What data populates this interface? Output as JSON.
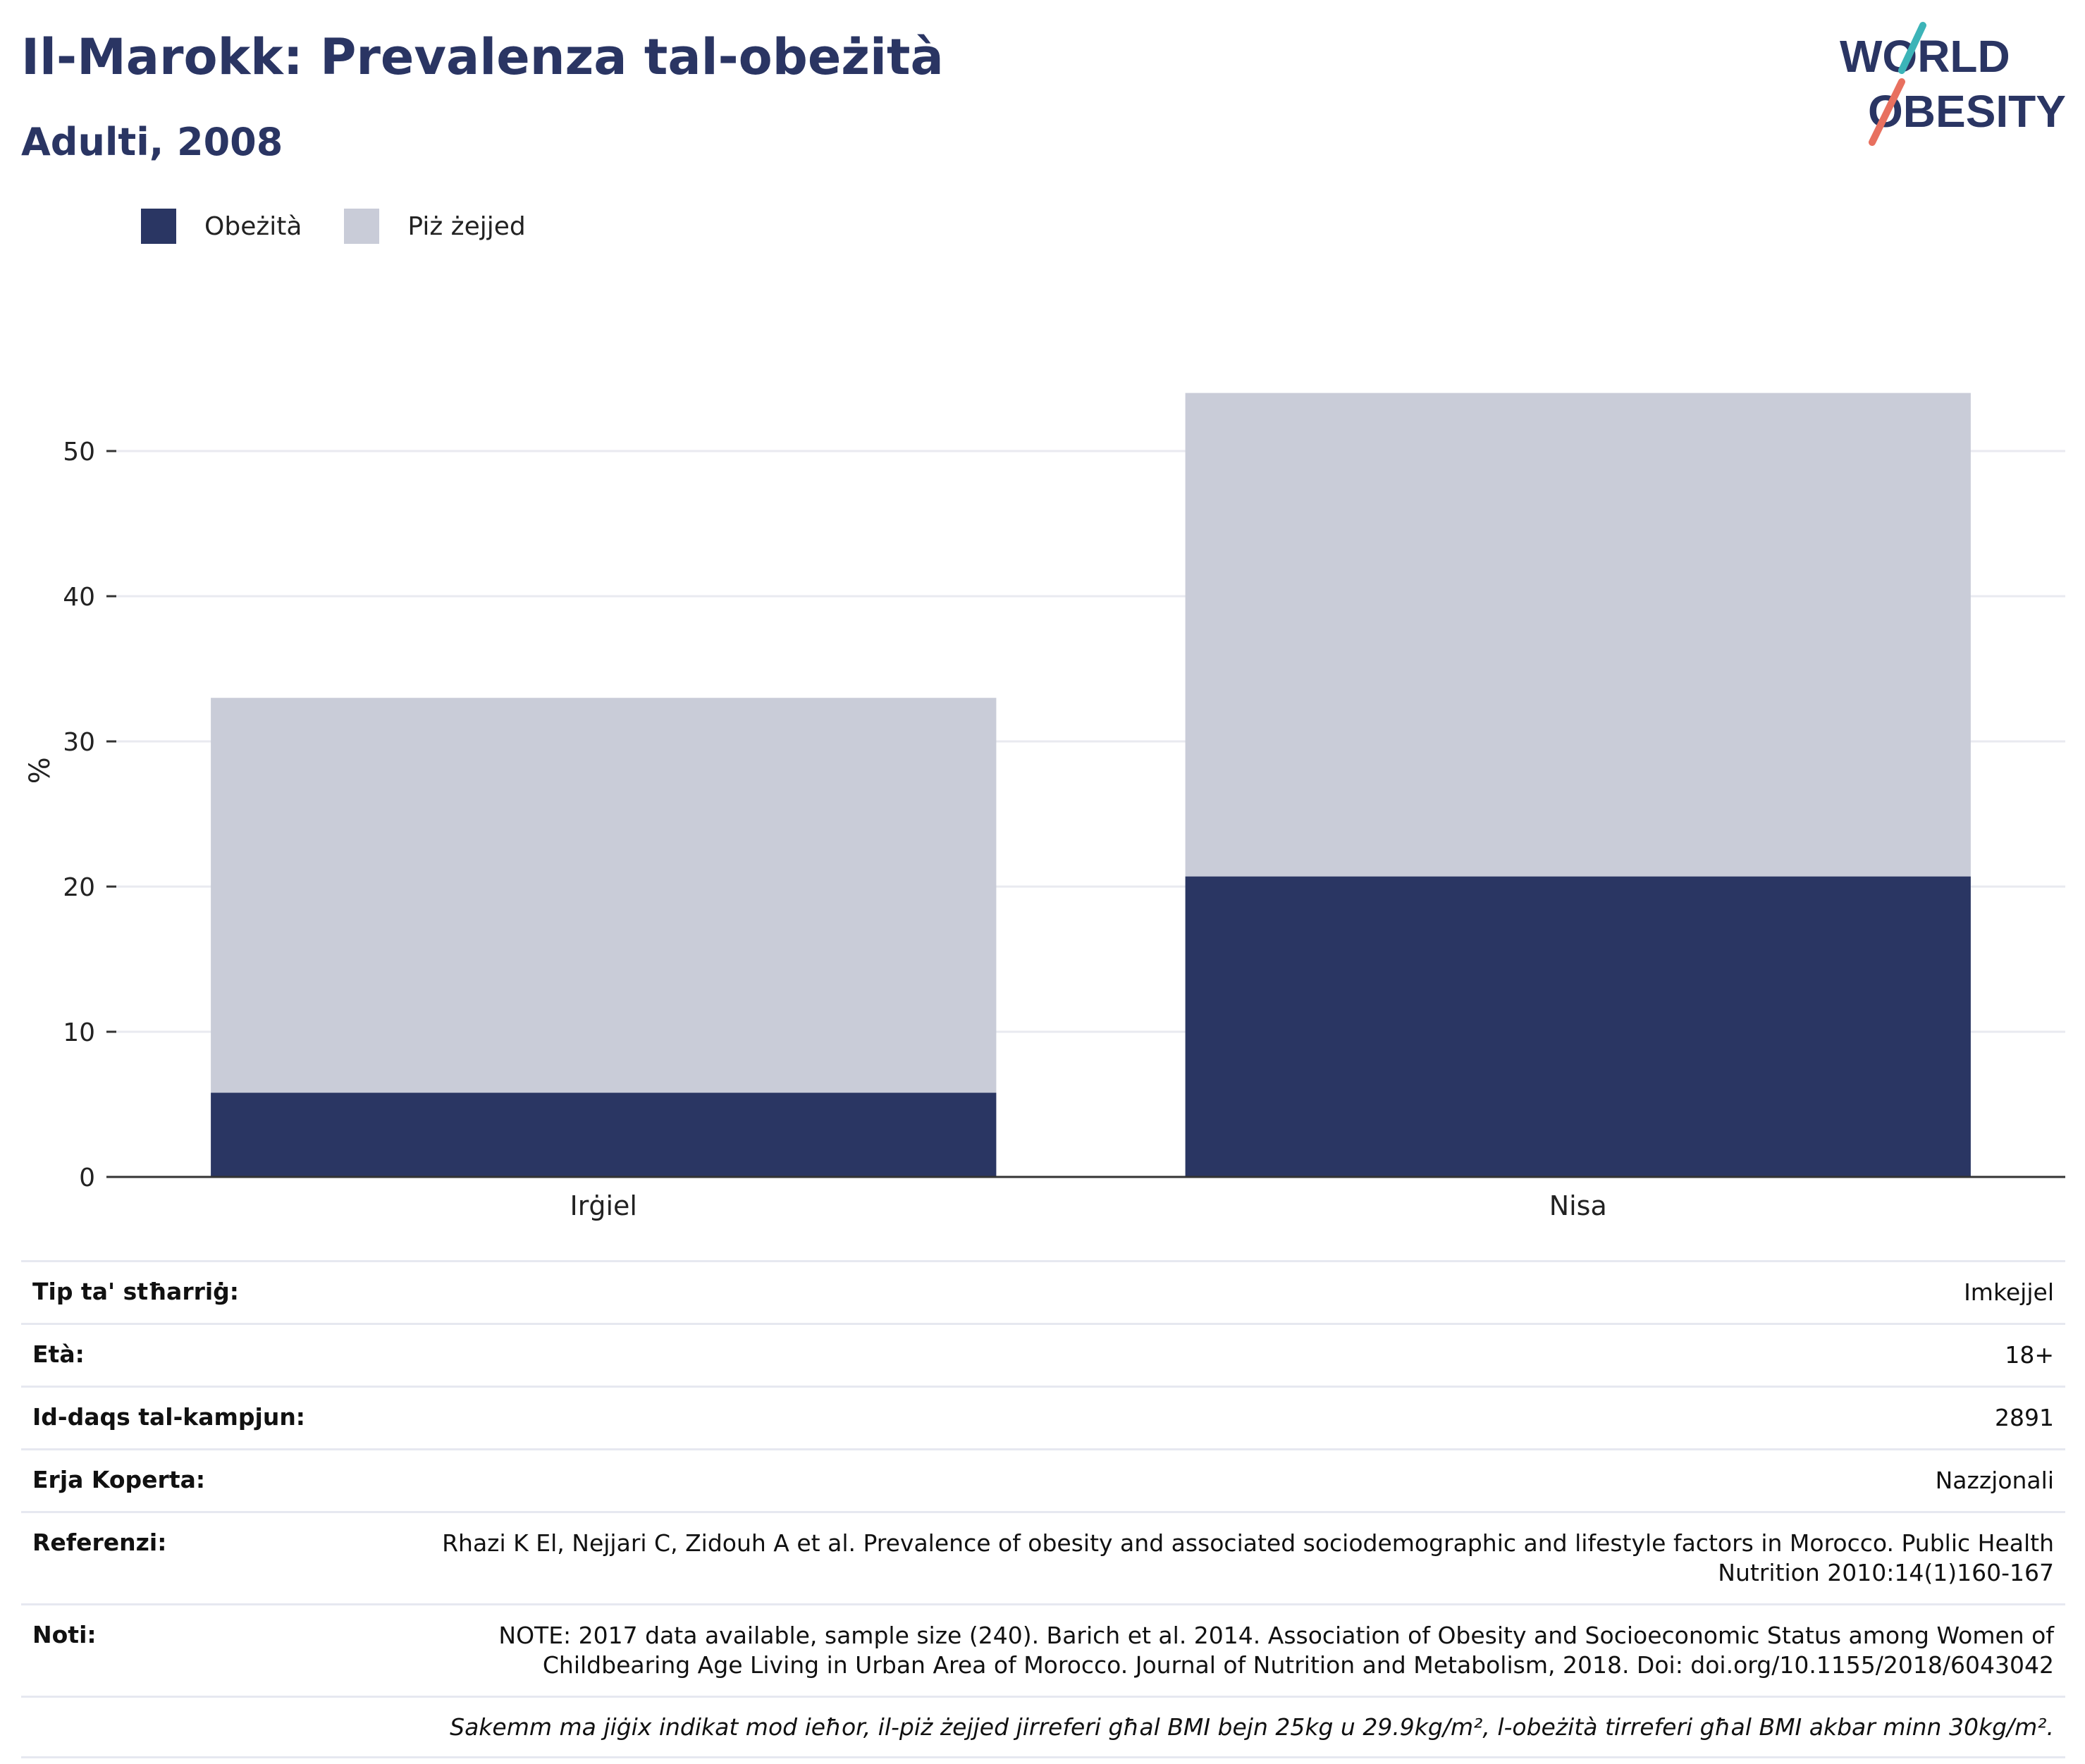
{
  "header": {
    "title": "Il-Marokk: Prevalenza tal-obeżità",
    "subtitle": "Adulti, 2008"
  },
  "logo": {
    "line1": "WORLD",
    "line2": "OBESITY"
  },
  "colors": {
    "obesity": "#2a3663",
    "overweight": "#c9ccd8",
    "axis": "#333333",
    "grid": "#e9eaf0"
  },
  "chart_data": {
    "type": "bar",
    "stacked": true,
    "categories": [
      "Irġiel",
      "Nisa"
    ],
    "series": [
      {
        "name": "Obeżità",
        "values": [
          5.8,
          20.7
        ]
      },
      {
        "name": "Piż żejjed",
        "values": [
          27.2,
          33.3
        ]
      }
    ],
    "ylabel": "%",
    "ylim": [
      0,
      56
    ],
    "yticks": [
      0,
      10,
      20,
      30,
      40,
      50
    ],
    "grid": true,
    "legend_position": "top-left"
  },
  "info": {
    "rows": [
      {
        "label": "Tip ta' stħarriġ:",
        "value": "Imkejjel"
      },
      {
        "label": "Età:",
        "value": "18+"
      },
      {
        "label": "Id-daqs tal-kampjun:",
        "value": "2891"
      },
      {
        "label": "Erja Koperta:",
        "value": "Nazzjonali"
      },
      {
        "label": "Referenzi:",
        "value": "Rhazi K El, Nejjari C, Zidouh A et al. Prevalence of obesity and associated sociodemographic and lifestyle factors in Morocco. Public Health Nutrition 2010:14(1)160-167"
      },
      {
        "label": "Noti:",
        "value": "NOTE: 2017 data available, sample size (240). Barich et al. 2014. Association of Obesity and Socioeconomic Status among Women of Childbearing Age Living in Urban Area of Morocco. Journal of Nutrition and Metabolism, 2018. Doi: doi.org/10.1155/2018/6043042"
      }
    ],
    "footnote": "Sakemm ma jiġix indikat mod ieħor, il-piż żejjed jirreferi għal BMI bejn 25kg u 29.9kg/m², l-obeżità tirreferi għal BMI akbar minn 30kg/m²."
  }
}
